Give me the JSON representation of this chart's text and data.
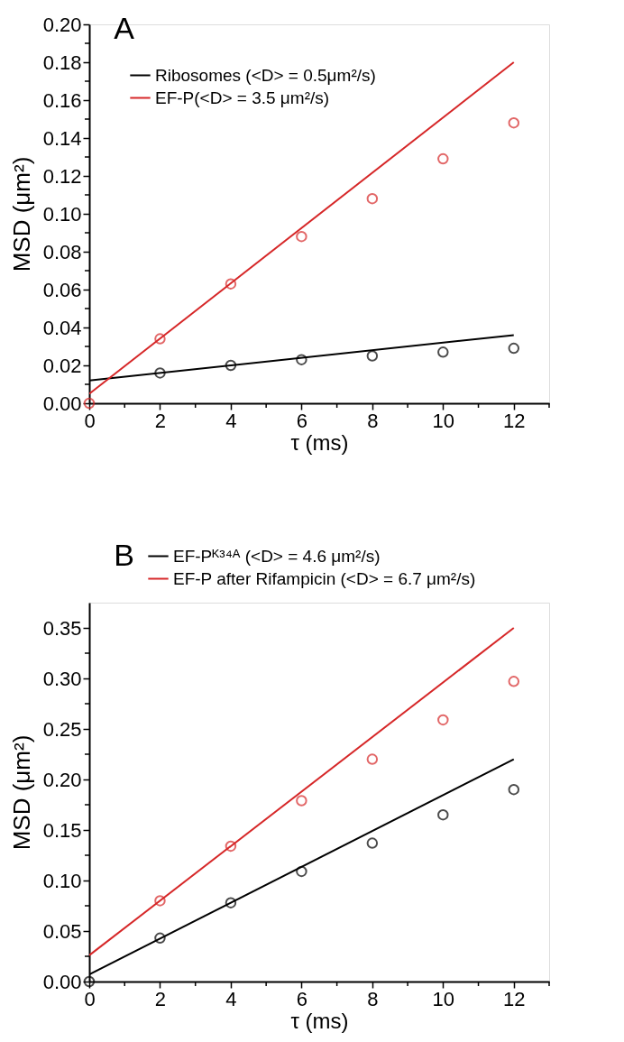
{
  "chart_data": [
    {
      "type": "scatter",
      "title": "A",
      "xlabel": "τ (ms)",
      "ylabel": "MSD (μm²)",
      "legend": "top left",
      "grid": false,
      "xlim": [
        0,
        13
      ],
      "ylim": [
        0,
        0.2
      ],
      "xticks": [
        0,
        {
          "value": 1,
          "label": null
        },
        2,
        {
          "value": 3,
          "label": null
        },
        4,
        {
          "value": 5,
          "label": null
        },
        6,
        {
          "value": 7,
          "label": null
        },
        8,
        {
          "value": 9,
          "label": null
        },
        10,
        {
          "value": 11,
          "label": null
        },
        12,
        {
          "value": 13,
          "label": null
        }
      ],
      "yticks": [
        {
          "value": 0,
          "label": "0.00"
        },
        {
          "value": 0.01,
          "label": null
        },
        {
          "value": 0.02,
          "label": "0.02"
        },
        {
          "value": 0.03,
          "label": null
        },
        {
          "value": 0.04,
          "label": "0.04"
        },
        {
          "value": 0.05,
          "label": null
        },
        {
          "value": 0.06,
          "label": "0.06"
        },
        {
          "value": 0.07,
          "label": null
        },
        {
          "value": 0.08,
          "label": "0.08"
        },
        {
          "value": 0.09,
          "label": null
        },
        {
          "value": 0.1,
          "label": "0.10"
        },
        {
          "value": 0.11,
          "label": null
        },
        {
          "value": 0.12,
          "label": "0.12"
        },
        {
          "value": 0.13,
          "label": null
        },
        {
          "value": 0.14,
          "label": "0.14"
        },
        {
          "value": 0.15,
          "label": null
        },
        {
          "value": 0.16,
          "label": "0.16"
        },
        {
          "value": 0.17,
          "label": null
        },
        {
          "value": 0.18,
          "label": "0.18"
        },
        {
          "value": 0.19,
          "label": null
        },
        {
          "value": 0.2,
          "label": "0.20"
        }
      ],
      "series": [
        {
          "name": "Ribosomes (<D> = 0.5μm²/s)",
          "type": "line",
          "color": "#000000",
          "x": [
            0,
            12
          ],
          "values": [
            0.012,
            0.036
          ]
        },
        {
          "name": "EF-P(<D> = 3.5 μm²/s)",
          "type": "line",
          "color": "#d62728",
          "x": [
            0,
            12
          ],
          "values": [
            0.005,
            0.18
          ]
        },
        {
          "marker": "circle",
          "color": "#000000",
          "x": [
            2,
            4,
            6,
            8,
            10,
            12
          ],
          "values": [
            0.016,
            0.02,
            0.023,
            0.025,
            0.027,
            0.029
          ]
        },
        {
          "marker": "circle",
          "color": "#d62728",
          "x": [
            0,
            2,
            4,
            6,
            8,
            10,
            12
          ],
          "values": [
            0,
            0.034,
            0.063,
            0.088,
            0.108,
            0.129,
            0.148
          ]
        }
      ]
    },
    {
      "type": "scatter",
      "title": "B",
      "xlabel": "τ (ms)",
      "ylabel": "MSD (μm²)",
      "legend": "top",
      "grid": false,
      "xlim": [
        0,
        13
      ],
      "ylim": [
        0,
        0.375
      ],
      "xticks": [
        0,
        {
          "value": 1,
          "label": null
        },
        2,
        {
          "value": 3,
          "label": null
        },
        4,
        {
          "value": 5,
          "label": null
        },
        6,
        {
          "value": 7,
          "label": null
        },
        8,
        {
          "value": 9,
          "label": null
        },
        10,
        {
          "value": 11,
          "label": null
        },
        12,
        {
          "value": 13,
          "label": null
        }
      ],
      "yticks": [
        {
          "value": 0,
          "label": "0.00"
        },
        {
          "value": 0.025,
          "label": null
        },
        {
          "value": 0.05,
          "label": "0.05"
        },
        {
          "value": 0.075,
          "label": null
        },
        {
          "value": 0.1,
          "label": "0.10"
        },
        {
          "value": 0.125,
          "label": null
        },
        {
          "value": 0.15,
          "label": "0.15"
        },
        {
          "value": 0.175,
          "label": null
        },
        {
          "value": 0.2,
          "label": "0.20"
        },
        {
          "value": 0.225,
          "label": null
        },
        {
          "value": 0.25,
          "label": "0.25"
        },
        {
          "value": 0.275,
          "label": null
        },
        {
          "value": 0.3,
          "label": "0.30"
        },
        {
          "value": 0.325,
          "label": null
        },
        {
          "value": 0.35,
          "label": "0.35"
        }
      ],
      "series": [
        {
          "name": "EF-Pᴷ³⁴ᴬ (<D> = 4.6 μm²/s)",
          "type": "line",
          "color": "#000000",
          "x": [
            0,
            12
          ],
          "values": [
            0.007,
            0.22
          ]
        },
        {
          "name": "EF-P after   Rifampicin (<D> = 6.7 μm²/s)",
          "type": "line",
          "color": "#d62728",
          "x": [
            0,
            12
          ],
          "values": [
            0.026,
            0.35
          ]
        },
        {
          "marker": "circle",
          "color": "#000000",
          "x": [
            0,
            2,
            4,
            6,
            8,
            10,
            12
          ],
          "values": [
            0,
            0.043,
            0.078,
            0.109,
            0.137,
            0.165,
            0.19
          ]
        },
        {
          "marker": "circle",
          "color": "#d62728",
          "x": [
            2,
            4,
            6,
            8,
            10,
            12
          ],
          "values": [
            0.08,
            0.134,
            0.179,
            0.22,
            0.259,
            0.297
          ]
        }
      ]
    }
  ]
}
